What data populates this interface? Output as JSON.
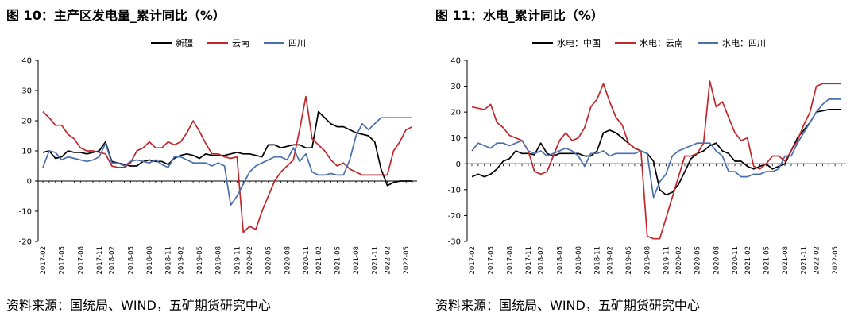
{
  "charts": [
    {
      "title": "图 10：主产区发电量_累计同比（%）",
      "source": "资料来源：国统局、WIND，五矿期货研究中心"
    },
    {
      "title": "图 11：水电_累计同比（%）",
      "source": "资料来源：国统局、WIND，五矿期货研究中心"
    }
  ],
  "chart_data": [
    {
      "type": "line",
      "title": "图 10：主产区发电量_累计同比（%）",
      "xlabel": "",
      "ylabel": "",
      "ylim": [
        -20,
        40
      ],
      "yticks": [
        -20,
        -10,
        0,
        10,
        20,
        30,
        40
      ],
      "grid": false,
      "legend_position": "top-right",
      "x": [
        "2017-02",
        "2017-03",
        "2017-04",
        "2017-05",
        "2017-06",
        "2017-07",
        "2017-08",
        "2017-09",
        "2017-10",
        "2017-11",
        "2017-12",
        "2018-02",
        "2018-03",
        "2018-04",
        "2018-05",
        "2018-06",
        "2018-07",
        "2018-08",
        "2018-09",
        "2018-10",
        "2018-11",
        "2018-12",
        "2019-02",
        "2019-03",
        "2019-04",
        "2019-05",
        "2019-06",
        "2019-07",
        "2019-08",
        "2019-09",
        "2019-10",
        "2019-11",
        "2019-12",
        "2020-02",
        "2020-03",
        "2020-04",
        "2020-05",
        "2020-06",
        "2020-07",
        "2020-08",
        "2020-09",
        "2020-10",
        "2020-11",
        "2020-12",
        "2021-02",
        "2021-03",
        "2021-04",
        "2021-05",
        "2021-06",
        "2021-07",
        "2021-08",
        "2021-09",
        "2021-10",
        "2021-11",
        "2021-12",
        "2022-02",
        "2022-03",
        "2022-04",
        "2022-05",
        "2022-06"
      ],
      "xtick_labels": [
        "2017-02",
        "2017-05",
        "2017-08",
        "2017-11",
        "2018-02",
        "2018-05",
        "2018-08",
        "2018-11",
        "2019-02",
        "2019-05",
        "2019-08",
        "2019-11",
        "2020-02",
        "2020-05",
        "2020-08",
        "2020-11",
        "2021-02",
        "2021-05",
        "2021-08",
        "2021-11",
        "2022-02",
        "2022-05"
      ],
      "series": [
        {
          "name": "新疆",
          "color": "#000000",
          "values": [
            9.5,
            10,
            7.5,
            8,
            10,
            9.5,
            9.5,
            9,
            9.5,
            10,
            13,
            6.5,
            6,
            5.5,
            5,
            5,
            6.5,
            7,
            6.5,
            6.5,
            5.5,
            7.5,
            8.5,
            9,
            8.5,
            7.5,
            9,
            8.5,
            8.5,
            8.5,
            9,
            9.5,
            9,
            9,
            8.5,
            8,
            12,
            12,
            11,
            11.5,
            12,
            12,
            11,
            11,
            23,
            21,
            19,
            18,
            18,
            17,
            16,
            15.5,
            15,
            13,
            4,
            -1.5,
            -0.5,
            0,
            0,
            0
          ]
        },
        {
          "name": "云南",
          "color": "#c0282d",
          "values": [
            23,
            21,
            18.5,
            18.5,
            15.5,
            14,
            11,
            10,
            10,
            9.5,
            9,
            5,
            4.5,
            4.5,
            6,
            10,
            11,
            13,
            11,
            11,
            13,
            12,
            13,
            16,
            20,
            16.5,
            12.5,
            9,
            9,
            8,
            7.5,
            8,
            -17,
            -15,
            -16,
            -10,
            -5,
            0,
            3,
            5,
            7,
            17,
            28,
            14,
            12,
            10,
            7,
            5,
            6,
            4,
            3,
            2,
            2,
            2,
            2,
            2,
            10,
            13,
            17,
            18
          ]
        },
        {
          "name": "四川",
          "color": "#4a6fae",
          "values": [
            4.5,
            10,
            9.5,
            7,
            8,
            7.5,
            7,
            6.5,
            7,
            8,
            12.5,
            6,
            6,
            5,
            6.5,
            7,
            6.5,
            6,
            7,
            5.5,
            4.5,
            8,
            8,
            7,
            6,
            6,
            6,
            5,
            6,
            5,
            -8,
            -5,
            -1,
            3,
            5,
            6,
            7,
            8,
            8,
            7,
            11,
            6.5,
            9,
            3,
            2,
            2,
            2.5,
            2,
            2,
            7,
            15,
            19,
            17,
            19,
            21,
            21,
            21,
            21,
            21,
            21
          ]
        }
      ]
    },
    {
      "type": "line",
      "title": "图 11：水电_累计同比（%）",
      "xlabel": "",
      "ylabel": "",
      "ylim": [
        -30,
        40
      ],
      "yticks": [
        -30,
        -20,
        -10,
        0,
        10,
        20,
        30,
        40
      ],
      "grid": false,
      "legend_position": "top-right",
      "x": [
        "2017-02",
        "2017-03",
        "2017-04",
        "2017-05",
        "2017-06",
        "2017-07",
        "2017-08",
        "2017-09",
        "2017-10",
        "2017-11",
        "2017-12",
        "2018-02",
        "2018-03",
        "2018-04",
        "2018-05",
        "2018-06",
        "2018-07",
        "2018-08",
        "2018-09",
        "2018-10",
        "2018-11",
        "2018-12",
        "2019-02",
        "2019-03",
        "2019-04",
        "2019-05",
        "2019-06",
        "2019-07",
        "2019-08",
        "2019-09",
        "2019-10",
        "2019-11",
        "2019-12",
        "2020-02",
        "2020-03",
        "2020-04",
        "2020-05",
        "2020-06",
        "2020-07",
        "2020-08",
        "2020-09",
        "2020-10",
        "2020-11",
        "2020-12",
        "2021-02",
        "2021-03",
        "2021-04",
        "2021-05",
        "2021-06",
        "2021-07",
        "2021-08",
        "2021-09",
        "2021-10",
        "2021-11",
        "2021-12",
        "2022-02",
        "2022-03",
        "2022-04",
        "2022-05",
        "2022-06"
      ],
      "xtick_labels": [
        "2017-02",
        "2017-05",
        "2017-08",
        "2017-11",
        "2018-02",
        "2018-05",
        "2018-08",
        "2018-11",
        "2019-02",
        "2019-05",
        "2019-08",
        "2019-11",
        "2020-02",
        "2020-05",
        "2020-08",
        "2020-11",
        "2021-02",
        "2021-05",
        "2021-08",
        "2021-11",
        "2022-02",
        "2022-05"
      ],
      "series": [
        {
          "name": "水电：中国",
          "color": "#000000",
          "values": [
            -5,
            -4,
            -5,
            -4,
            -2,
            1,
            2,
            5,
            4,
            4,
            3.5,
            8,
            4,
            3,
            4,
            4,
            4,
            4,
            3,
            3,
            5,
            12,
            13,
            12,
            10,
            8,
            6,
            5,
            4,
            1,
            -10,
            -12,
            -11,
            -8,
            -3,
            2,
            4,
            5,
            7,
            8,
            5,
            4,
            1,
            1,
            -1,
            -2,
            -1,
            0,
            -2,
            -1,
            0,
            5,
            10,
            13,
            16,
            20,
            20.5,
            21,
            21,
            21
          ]
        },
        {
          "name": "水电：云南",
          "color": "#c0282d",
          "values": [
            22,
            21.5,
            21,
            23,
            16,
            14,
            11,
            10,
            9,
            5,
            -3,
            -4,
            -3,
            3,
            9,
            12,
            9,
            10,
            14,
            22,
            25,
            31,
            24,
            18,
            15,
            8,
            6,
            5,
            -28,
            -29,
            -29,
            -21,
            -13,
            -5,
            3,
            3,
            4,
            8,
            32,
            22,
            24,
            18,
            12,
            9,
            10,
            -1,
            -2,
            0,
            3,
            3,
            1,
            5,
            9,
            15,
            20,
            30,
            31,
            31,
            31,
            31
          ]
        },
        {
          "name": "水电：四川",
          "color": "#4a6fae",
          "values": [
            5,
            8,
            7,
            6,
            8,
            8,
            7,
            8,
            9,
            5,
            4,
            5,
            3,
            4,
            5,
            6,
            5,
            3,
            -1,
            4,
            4,
            5,
            3,
            4,
            4,
            4,
            4,
            5,
            4,
            -13,
            -7,
            -4,
            3,
            5,
            6,
            7,
            8,
            8,
            8,
            5,
            3,
            -3,
            -3,
            -5,
            -5,
            -4,
            -4,
            -3,
            -3,
            -2,
            3,
            3,
            8,
            12,
            16,
            20,
            23,
            25,
            25,
            25
          ]
        }
      ]
    }
  ]
}
